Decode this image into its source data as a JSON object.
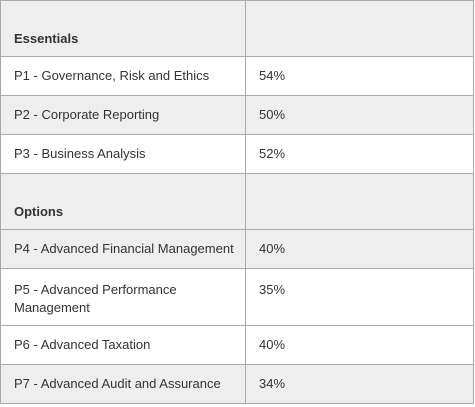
{
  "sections": [
    {
      "title": "Essentials",
      "rows": [
        {
          "subject": "P1  - Governance, Risk and Ethics",
          "percent": "54%"
        },
        {
          "subject": "P2 - Corporate Reporting",
          "percent": "50%"
        },
        {
          "subject": "P3 - Business Analysis",
          "percent": "52%"
        }
      ]
    },
    {
      "title": "Options",
      "rows": [
        {
          "subject": "P4 - Advanced Financial Management",
          "percent": "40%"
        },
        {
          "subject": "P5 - Advanced Performance Management",
          "percent": "35%"
        },
        {
          "subject": "P6 - Advanced Taxation",
          "percent": "40%"
        },
        {
          "subject": "P7 - Advanced Audit and Assurance",
          "percent": "34%"
        }
      ]
    }
  ],
  "colors": {
    "row_gray": "#eeeeee",
    "row_white": "#ffffff",
    "border": "#a9a9a9",
    "text": "#333333"
  }
}
